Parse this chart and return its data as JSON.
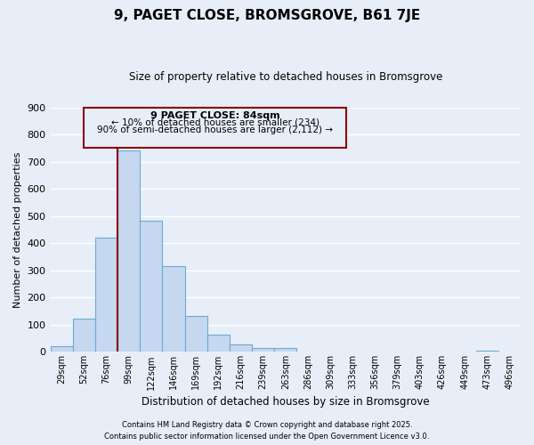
{
  "title": "9, PAGET CLOSE, BROMSGROVE, B61 7JE",
  "subtitle": "Size of property relative to detached houses in Bromsgrove",
  "xlabel": "Distribution of detached houses by size in Bromsgrove",
  "ylabel": "Number of detached properties",
  "bar_labels": [
    "29sqm",
    "52sqm",
    "76sqm",
    "99sqm",
    "122sqm",
    "146sqm",
    "169sqm",
    "192sqm",
    "216sqm",
    "239sqm",
    "263sqm",
    "286sqm",
    "309sqm",
    "333sqm",
    "356sqm",
    "379sqm",
    "403sqm",
    "426sqm",
    "449sqm",
    "473sqm",
    "496sqm"
  ],
  "bar_values": [
    20,
    122,
    422,
    740,
    484,
    316,
    133,
    64,
    28,
    15,
    14,
    0,
    0,
    0,
    0,
    0,
    0,
    0,
    0,
    5,
    0
  ],
  "bar_color": "#c5d8f0",
  "bar_edge_color": "#6aaad4",
  "ylim": [
    0,
    900
  ],
  "yticks": [
    0,
    100,
    200,
    300,
    400,
    500,
    600,
    700,
    800,
    900
  ],
  "vline_color": "#8b0000",
  "annotation_title": "9 PAGET CLOSE: 84sqm",
  "annotation_line1": "← 10% of detached houses are smaller (234)",
  "annotation_line2": "90% of semi-detached houses are larger (2,112) →",
  "annotation_box_color": "#8b0000",
  "background_color": "#e8eef8",
  "grid_color": "#ffffff",
  "footer1": "Contains HM Land Registry data © Crown copyright and database right 2025.",
  "footer2": "Contains public sector information licensed under the Open Government Licence v3.0."
}
